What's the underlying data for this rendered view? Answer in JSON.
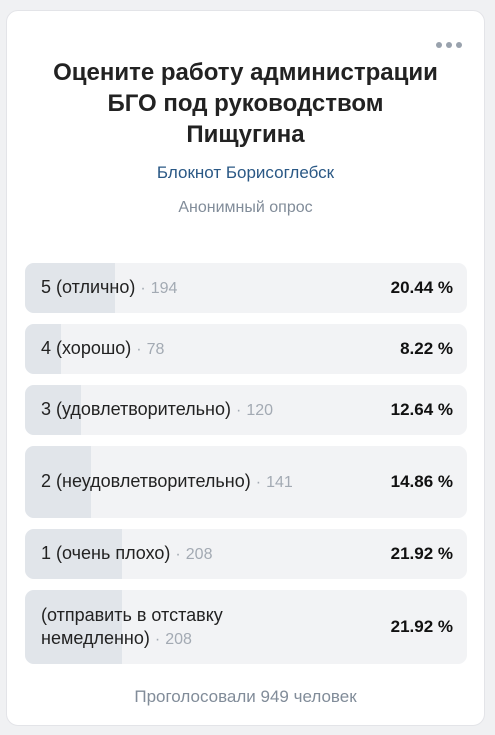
{
  "poll": {
    "title": "Оцените работу администрации БГО под руководством Пищугина",
    "source": "Блокнот Борисоглебск",
    "type_label": "Анонимный опрос",
    "options": [
      {
        "label": "5 (отлично)",
        "count": "194",
        "percent": "20.44 %",
        "fraction": 0.2044
      },
      {
        "label": "4 (хорошо)",
        "count": "78",
        "percent": "8.22 %",
        "fraction": 0.0822
      },
      {
        "label": "3 (удовлетворительно)",
        "count": "120",
        "percent": "12.64 %",
        "fraction": 0.1264
      },
      {
        "label": "2 (неудовлетворительно)",
        "count": "141",
        "percent": "14.86 %",
        "fraction": 0.1486
      },
      {
        "label": "1 (очень плохо)",
        "count": "208",
        "percent": "21.92 %",
        "fraction": 0.2192
      },
      {
        "label": "(отправить в отставку немедленно)",
        "count": "208",
        "percent": "21.92 %",
        "fraction": 0.2192
      }
    ],
    "voters": "Проголосовали 949 человек",
    "count_separator": "·"
  },
  "colors": {
    "link": "#2a5885",
    "bar_bg": "#f2f3f5",
    "bar_fill": "#e1e5ea",
    "muted": "#818c99"
  },
  "icons": {
    "more": "more-horizontal-icon"
  }
}
